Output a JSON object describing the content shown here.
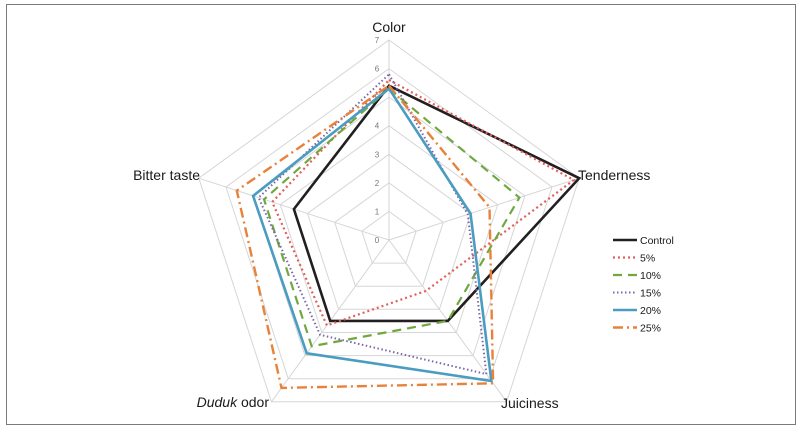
{
  "chart_data": {
    "type": "radar",
    "axes": [
      {
        "label": "Color",
        "italic_prefix": ""
      },
      {
        "label": "Tenderness",
        "italic_prefix": ""
      },
      {
        "label": "Juiciness",
        "italic_prefix": ""
      },
      {
        "label": " odor",
        "italic_prefix": "Duduk"
      },
      {
        "label": "Bitter  taste",
        "italic_prefix": ""
      }
    ],
    "ticks": [
      "0",
      "1",
      "2",
      "3",
      "4",
      "5",
      "6",
      "7"
    ],
    "rmax": 7,
    "series": [
      {
        "name": "Control",
        "values": [
          5.4,
          7.0,
          3.5,
          3.5,
          3.5
        ],
        "color": "#231f20",
        "dash": "",
        "width": 2.6
      },
      {
        "name": "5%",
        "values": [
          5.6,
          6.8,
          2.2,
          3.7,
          4.3
        ],
        "color": "#e0605a",
        "dash": "2,3",
        "width": 2.2
      },
      {
        "name": "10%",
        "values": [
          5.3,
          4.8,
          3.5,
          4.6,
          4.6
        ],
        "color": "#70a840",
        "dash": "9,6",
        "width": 2.2
      },
      {
        "name": "15%",
        "values": [
          5.8,
          2.9,
          5.8,
          4.1,
          4.8
        ],
        "color": "#7a67a8",
        "dash": "1.5,2.5",
        "width": 2.0
      },
      {
        "name": "20%",
        "values": [
          5.3,
          3.0,
          6.1,
          4.9,
          5.0
        ],
        "color": "#4a9cc0",
        "dash": "",
        "width": 2.6
      },
      {
        "name": "25%",
        "values": [
          5.4,
          3.7,
          6.2,
          6.4,
          5.6
        ],
        "color": "#e8823a",
        "dash": "10,4,2,4",
        "width": 2.4
      }
    ]
  }
}
